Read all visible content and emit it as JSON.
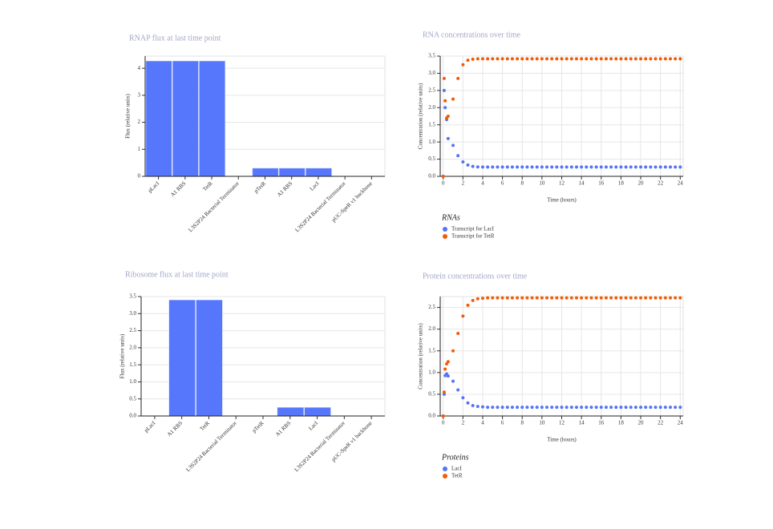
{
  "chart_data": [
    {
      "type": "bar",
      "title": "RNAP flux at last time point",
      "ylabel": "Flux (relative units)",
      "categories": [
        "pLacI",
        "A1 RBS",
        "TetR",
        "L3S2P24 Bacterial Terminator",
        "pTetR",
        "A1 RBS",
        "LacI",
        "L3S2P24 Bacterial Terminator",
        "pUC-SpeR v1 backbone"
      ],
      "values": [
        4.27,
        4.27,
        4.27,
        0,
        0.3,
        0.3,
        0.3,
        0,
        0
      ],
      "color": "#5677fc",
      "ylim": [
        0,
        4.45
      ],
      "yticks": [
        0,
        1,
        2,
        3,
        4
      ],
      "grid": true
    },
    {
      "type": "bar",
      "title": "Ribosome flux at last time point",
      "ylabel": "Flux (relative units)",
      "categories": [
        "pLacI",
        "A1 RBS",
        "TetR",
        "L3S2P24 Bacterial Terminator",
        "pTetR",
        "A1 RBS",
        "LacI",
        "L3S2P24 Bacterial Terminator",
        "pUC-SpeR v1 backbone"
      ],
      "values": [
        0,
        3.4,
        3.4,
        0,
        0,
        0.25,
        0.25,
        0,
        0
      ],
      "color": "#5677fc",
      "ylim": [
        0,
        3.5
      ],
      "yticks": [
        {
          "value": 0,
          "label": "0.0"
        },
        0.5,
        {
          "value": 1,
          "label": "1.0"
        },
        1.5,
        {
          "value": 2,
          "label": "2.0"
        },
        2.5,
        {
          "value": 3,
          "label": "3.0"
        },
        3.5
      ],
      "grid": true
    },
    {
      "type": "line",
      "title": "RNA concentrations over time",
      "xlabel": "Time (hours)",
      "ylabel": "Concentration (relative units)",
      "legend_title": "RNAs",
      "x": [
        0,
        0.1,
        0.2,
        0.35,
        0.5,
        1,
        1.5,
        2,
        2.5,
        3,
        3.5,
        4,
        4.5,
        5,
        5.5,
        6,
        6.5,
        7,
        7.5,
        8,
        8.5,
        9,
        9.5,
        10,
        10.5,
        11,
        11.5,
        12,
        12.5,
        13,
        13.5,
        14,
        14.5,
        15,
        15.5,
        16,
        16.5,
        17,
        17.5,
        18,
        18.5,
        19,
        19.5,
        20,
        20.5,
        21,
        21.5,
        22,
        22.5,
        23,
        23.5,
        24
      ],
      "series": [
        {
          "name": "Transcript for LacI",
          "color": "#5574f7",
          "values": [
            0,
            2.5,
            2.0,
            1.65,
            1.1,
            0.9,
            0.6,
            0.42,
            0.33,
            0.29,
            0.275,
            0.27,
            0.27,
            0.27,
            0.27,
            0.27,
            0.27,
            0.27,
            0.27,
            0.27,
            0.27,
            0.27,
            0.27,
            0.27,
            0.27,
            0.27,
            0.27,
            0.27,
            0.27,
            0.27,
            0.27,
            0.27,
            0.27,
            0.27,
            0.27,
            0.27,
            0.27,
            0.27,
            0.27,
            0.27,
            0.27,
            0.27,
            0.27,
            0.27,
            0.27,
            0.27,
            0.27,
            0.27,
            0.27,
            0.27,
            0.27,
            0.27
          ]
        },
        {
          "name": "Transcript for TetR",
          "color": "#f25c05",
          "values": [
            0,
            2.85,
            2.2,
            1.7,
            1.75,
            2.25,
            2.85,
            3.25,
            3.38,
            3.41,
            3.42,
            3.42,
            3.42,
            3.42,
            3.42,
            3.42,
            3.42,
            3.42,
            3.42,
            3.42,
            3.42,
            3.42,
            3.42,
            3.42,
            3.42,
            3.42,
            3.42,
            3.42,
            3.42,
            3.42,
            3.42,
            3.42,
            3.42,
            3.42,
            3.42,
            3.42,
            3.42,
            3.42,
            3.42,
            3.42,
            3.42,
            3.42,
            3.42,
            3.42,
            3.42,
            3.42,
            3.42,
            3.42,
            3.42,
            3.42,
            3.42,
            3.42
          ]
        }
      ],
      "xlim": [
        -0.3,
        24.3
      ],
      "xticks": [
        0,
        2,
        4,
        6,
        8,
        10,
        12,
        14,
        16,
        18,
        20,
        22,
        24
      ],
      "ylim": [
        0,
        3.5
      ],
      "yticks": [
        {
          "value": 0,
          "label": "0.0"
        },
        0.5,
        {
          "value": 1,
          "label": "1.0"
        },
        1.5,
        {
          "value": 2,
          "label": "2.0"
        },
        2.5,
        {
          "value": 3,
          "label": "3.0"
        },
        3.5
      ],
      "grid": true
    },
    {
      "type": "line",
      "title": "Protein concentrations over time",
      "xlabel": "Time (hours)",
      "ylabel": "Concentration (relative units)",
      "legend_title": "Proteins",
      "x": [
        0,
        0.1,
        0.2,
        0.35,
        0.5,
        1,
        1.5,
        2,
        2.5,
        3,
        3.5,
        4,
        4.5,
        5,
        5.5,
        6,
        6.5,
        7,
        7.5,
        8,
        8.5,
        9,
        9.5,
        10,
        10.5,
        11,
        11.5,
        12,
        12.5,
        13,
        13.5,
        14,
        14.5,
        15,
        15.5,
        16,
        16.5,
        17,
        17.5,
        18,
        18.5,
        19,
        19.5,
        20,
        20.5,
        21,
        21.5,
        22,
        22.5,
        23,
        23.5,
        24
      ],
      "series": [
        {
          "name": "LacI",
          "color": "#5574f7",
          "values": [
            0,
            0.5,
            0.93,
            0.97,
            0.92,
            0.8,
            0.6,
            0.42,
            0.3,
            0.24,
            0.22,
            0.21,
            0.2,
            0.2,
            0.2,
            0.2,
            0.2,
            0.2,
            0.2,
            0.2,
            0.2,
            0.2,
            0.2,
            0.2,
            0.2,
            0.2,
            0.2,
            0.2,
            0.2,
            0.2,
            0.2,
            0.2,
            0.2,
            0.2,
            0.2,
            0.2,
            0.2,
            0.2,
            0.2,
            0.2,
            0.2,
            0.2,
            0.2,
            0.2,
            0.2,
            0.2,
            0.2,
            0.2,
            0.2,
            0.2,
            0.2,
            0.2
          ]
        },
        {
          "name": "TetR",
          "color": "#f25c05",
          "values": [
            0,
            0.55,
            1.08,
            1.2,
            1.25,
            1.5,
            1.9,
            2.3,
            2.55,
            2.66,
            2.7,
            2.71,
            2.72,
            2.72,
            2.72,
            2.72,
            2.72,
            2.72,
            2.72,
            2.72,
            2.72,
            2.72,
            2.72,
            2.72,
            2.72,
            2.72,
            2.72,
            2.72,
            2.72,
            2.72,
            2.72,
            2.72,
            2.72,
            2.72,
            2.72,
            2.72,
            2.72,
            2.72,
            2.72,
            2.72,
            2.72,
            2.72,
            2.72,
            2.72,
            2.72,
            2.72,
            2.72,
            2.72,
            2.72,
            2.72,
            2.72,
            2.72
          ]
        }
      ],
      "xlim": [
        -0.3,
        24.3
      ],
      "xticks": [
        0,
        2,
        4,
        6,
        8,
        10,
        12,
        14,
        16,
        18,
        20,
        22,
        24
      ],
      "ylim": [
        0,
        2.75
      ],
      "yticks": [
        {
          "value": 0,
          "label": "0.0"
        },
        0.5,
        {
          "value": 1,
          "label": "1.0"
        },
        1.5,
        {
          "value": 2,
          "label": "2.0"
        },
        2.5
      ],
      "grid": true
    }
  ]
}
